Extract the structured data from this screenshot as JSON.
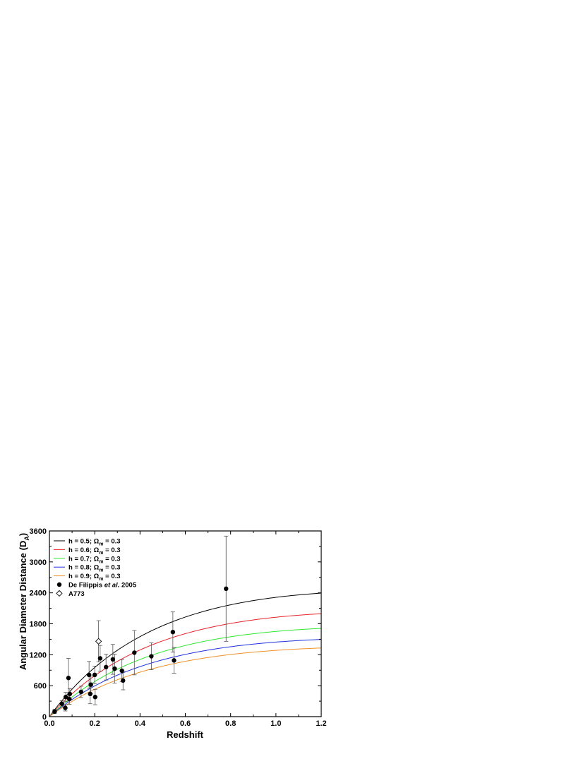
{
  "chart_data": {
    "type": "scatter",
    "xlabel": "Redshift",
    "ylabel_main": "Angular Diameter Distance (D",
    "ylabel_sub": "A",
    "ylabel_close": ")",
    "xlim": [
      0,
      1.2
    ],
    "ylim": [
      0,
      3600
    ],
    "x_ticks": [
      "0.0",
      "0.2",
      "0.4",
      "0.6",
      "0.8",
      "1.0",
      "1.2"
    ],
    "y_ticks": [
      "0",
      "600",
      "1200",
      "1800",
      "2400",
      "3000",
      "3600"
    ],
    "grid": false,
    "legend_position": "top-left",
    "series": [
      {
        "name": "h = 0.5; Ωm = 0.3",
        "legend_prefix": "h = 0.5; Ω",
        "legend_sub": "m",
        "legend_suffix": " = 0.3",
        "color": "#000000",
        "h": 0.5,
        "omega_m": 0.3
      },
      {
        "name": "h = 0.6; Ωm = 0.3",
        "legend_prefix": "h = 0.6; Ω",
        "legend_sub": "m",
        "legend_suffix": " = 0.3",
        "color": "#e8242b",
        "h": 0.6,
        "omega_m": 0.3
      },
      {
        "name": "h = 0.7; Ωm = 0.3",
        "legend_prefix": "h = 0.7; Ω",
        "legend_sub": "m",
        "legend_suffix": " = 0.3",
        "color": "#2fe82f",
        "h": 0.7,
        "omega_m": 0.3
      },
      {
        "name": "h = 0.8; Ωm = 0.3",
        "legend_prefix": "h = 0.8; Ω",
        "legend_sub": "m",
        "legend_suffix": " = 0.3",
        "color": "#2030e0",
        "h": 0.8,
        "omega_m": 0.3
      },
      {
        "name": "h = 0.9; Ωm = 0.3",
        "legend_prefix": "h = 0.9; Ω",
        "legend_sub": "m",
        "legend_suffix": " = 0.3",
        "color": "#f0902a",
        "h": 0.9,
        "omega_m": 0.3
      }
    ],
    "defilippis": {
      "legend_prefix": "De Filippis ",
      "legend_italic": "et al.",
      "legend_suffix": " 2005",
      "marker": "filled-circle",
      "points": [
        {
          "x": 0.023,
          "y": 100,
          "err": 40
        },
        {
          "x": 0.055,
          "y": 250,
          "err": 60
        },
        {
          "x": 0.07,
          "y": 170,
          "err": 60
        },
        {
          "x": 0.072,
          "y": 380,
          "err": 90
        },
        {
          "x": 0.084,
          "y": 750,
          "err": 380
        },
        {
          "x": 0.088,
          "y": 340,
          "err": 100
        },
        {
          "x": 0.09,
          "y": 440,
          "err": 100
        },
        {
          "x": 0.14,
          "y": 480,
          "err": 110
        },
        {
          "x": 0.175,
          "y": 810,
          "err": 260
        },
        {
          "x": 0.18,
          "y": 440,
          "err": 190
        },
        {
          "x": 0.183,
          "y": 620,
          "err": 170
        },
        {
          "x": 0.2,
          "y": 810,
          "err": 170
        },
        {
          "x": 0.202,
          "y": 380,
          "err": 150
        },
        {
          "x": 0.224,
          "y": 1130,
          "err": 250
        },
        {
          "x": 0.25,
          "y": 960,
          "err": 250
        },
        {
          "x": 0.28,
          "y": 1110,
          "err": 290
        },
        {
          "x": 0.288,
          "y": 930,
          "err": 280
        },
        {
          "x": 0.32,
          "y": 890,
          "err": 210
        },
        {
          "x": 0.325,
          "y": 700,
          "err": 180
        },
        {
          "x": 0.375,
          "y": 1240,
          "err": 430
        },
        {
          "x": 0.45,
          "y": 1170,
          "err": 260
        },
        {
          "x": 0.545,
          "y": 1640,
          "err": 390
        },
        {
          "x": 0.55,
          "y": 1090,
          "err": 250
        },
        {
          "x": 0.78,
          "y": 2480,
          "err": 1020
        }
      ]
    },
    "a773": {
      "legend_label": "A773",
      "marker": "open-diamond",
      "points": [
        {
          "x": 0.217,
          "y": 1460,
          "err": 400
        }
      ]
    }
  }
}
